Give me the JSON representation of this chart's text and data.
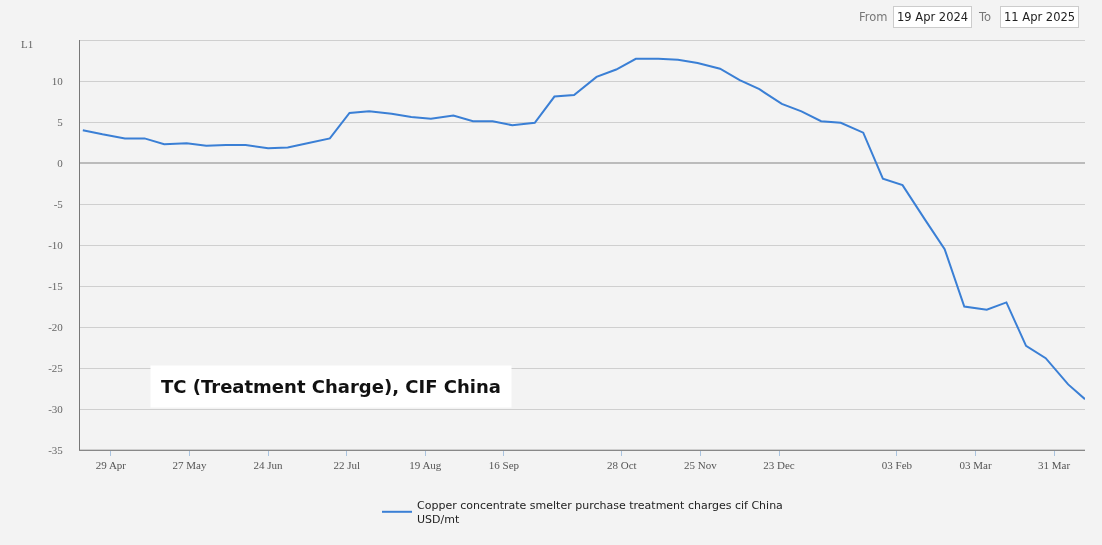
{
  "chart_data": {
    "type": "line",
    "title": "TC (Treatment Charge), CIF China",
    "ylabel": "L1",
    "annotations": [
      "From",
      "19 Apr 2024",
      "To",
      "11 Apr 2025"
    ],
    "x": [
      "2024-04-19",
      "2024-04-26",
      "2024-05-04",
      "2024-05-11",
      "2024-05-18",
      "2024-05-26",
      "2024-06-02",
      "2024-06-09",
      "2024-06-16",
      "2024-06-24",
      "2024-07-01",
      "2024-07-08",
      "2024-07-16",
      "2024-07-23",
      "2024-07-30",
      "2024-08-07",
      "2024-08-14",
      "2024-08-21",
      "2024-08-29",
      "2024-09-05",
      "2024-09-12",
      "2024-09-19",
      "2024-09-27",
      "2024-10-04",
      "2024-10-11",
      "2024-10-19",
      "2024-10-26",
      "2024-11-02",
      "2024-11-10",
      "2024-11-17",
      "2024-11-24",
      "2024-12-02",
      "2024-12-09",
      "2024-12-16",
      "2024-12-24",
      "2024-12-31",
      "2025-01-07",
      "2025-01-14",
      "2025-01-22",
      "2025-01-29",
      "2025-02-05",
      "2025-02-13",
      "2025-02-20",
      "2025-02-27",
      "2025-03-07",
      "2025-03-14",
      "2025-03-21",
      "2025-03-28",
      "2025-04-05",
      "2025-04-11"
    ],
    "series": [
      {
        "name": "Copper concentrate smelter purchase treatment charges cif China\nUSD/mt",
        "color": "#3a7fd5",
        "values": [
          4.0,
          3.5,
          3.0,
          3.0,
          2.3,
          2.4,
          2.1,
          2.2,
          2.2,
          1.8,
          1.9,
          2.4,
          3.0,
          6.1,
          6.3,
          6.0,
          5.6,
          5.4,
          5.8,
          5.1,
          5.1,
          4.6,
          4.9,
          8.1,
          8.3,
          10.5,
          11.4,
          12.7,
          12.7,
          12.6,
          12.2,
          11.5,
          10.1,
          9.0,
          7.2,
          6.3,
          5.1,
          4.9,
          3.7,
          -1.9,
          -2.7,
          -6.9,
          -10.5,
          -17.5,
          -17.9,
          -17.0,
          -22.3,
          -23.8,
          -27.0,
          -28.8
        ]
      }
    ],
    "xlim": [
      "2024-04-18",
      "2025-04-11"
    ],
    "xticks": [
      {
        "value": "2024-04-29",
        "label": "29 Apr"
      },
      {
        "value": "2024-05-27",
        "label": "27 May"
      },
      {
        "value": "2024-06-24",
        "label": "24 Jun"
      },
      {
        "value": "2024-07-22",
        "label": "22 Jul"
      },
      {
        "value": "2024-08-19",
        "label": "19 Aug"
      },
      {
        "value": "2024-09-16",
        "label": "16 Sep"
      },
      {
        "value": "2024-10-28",
        "label": "28 Oct"
      },
      {
        "value": "2024-11-25",
        "label": "25 Nov"
      },
      {
        "value": "2024-12-23",
        "label": "23 Dec"
      },
      {
        "value": "2025-02-03",
        "label": "03 Feb"
      },
      {
        "value": "2025-03-03",
        "label": "03 Mar"
      },
      {
        "value": "2025-03-31",
        "label": "31 Mar"
      }
    ],
    "ylim": [
      -35,
      15
    ],
    "yticks": [
      -35,
      -30,
      -25,
      -20,
      -15,
      -10,
      -5,
      0,
      5,
      10,
      {
        "value": 15,
        "label": null
      }
    ],
    "grid": "y",
    "legend": "bottom",
    "marker": "none",
    "line_style": "solid"
  }
}
